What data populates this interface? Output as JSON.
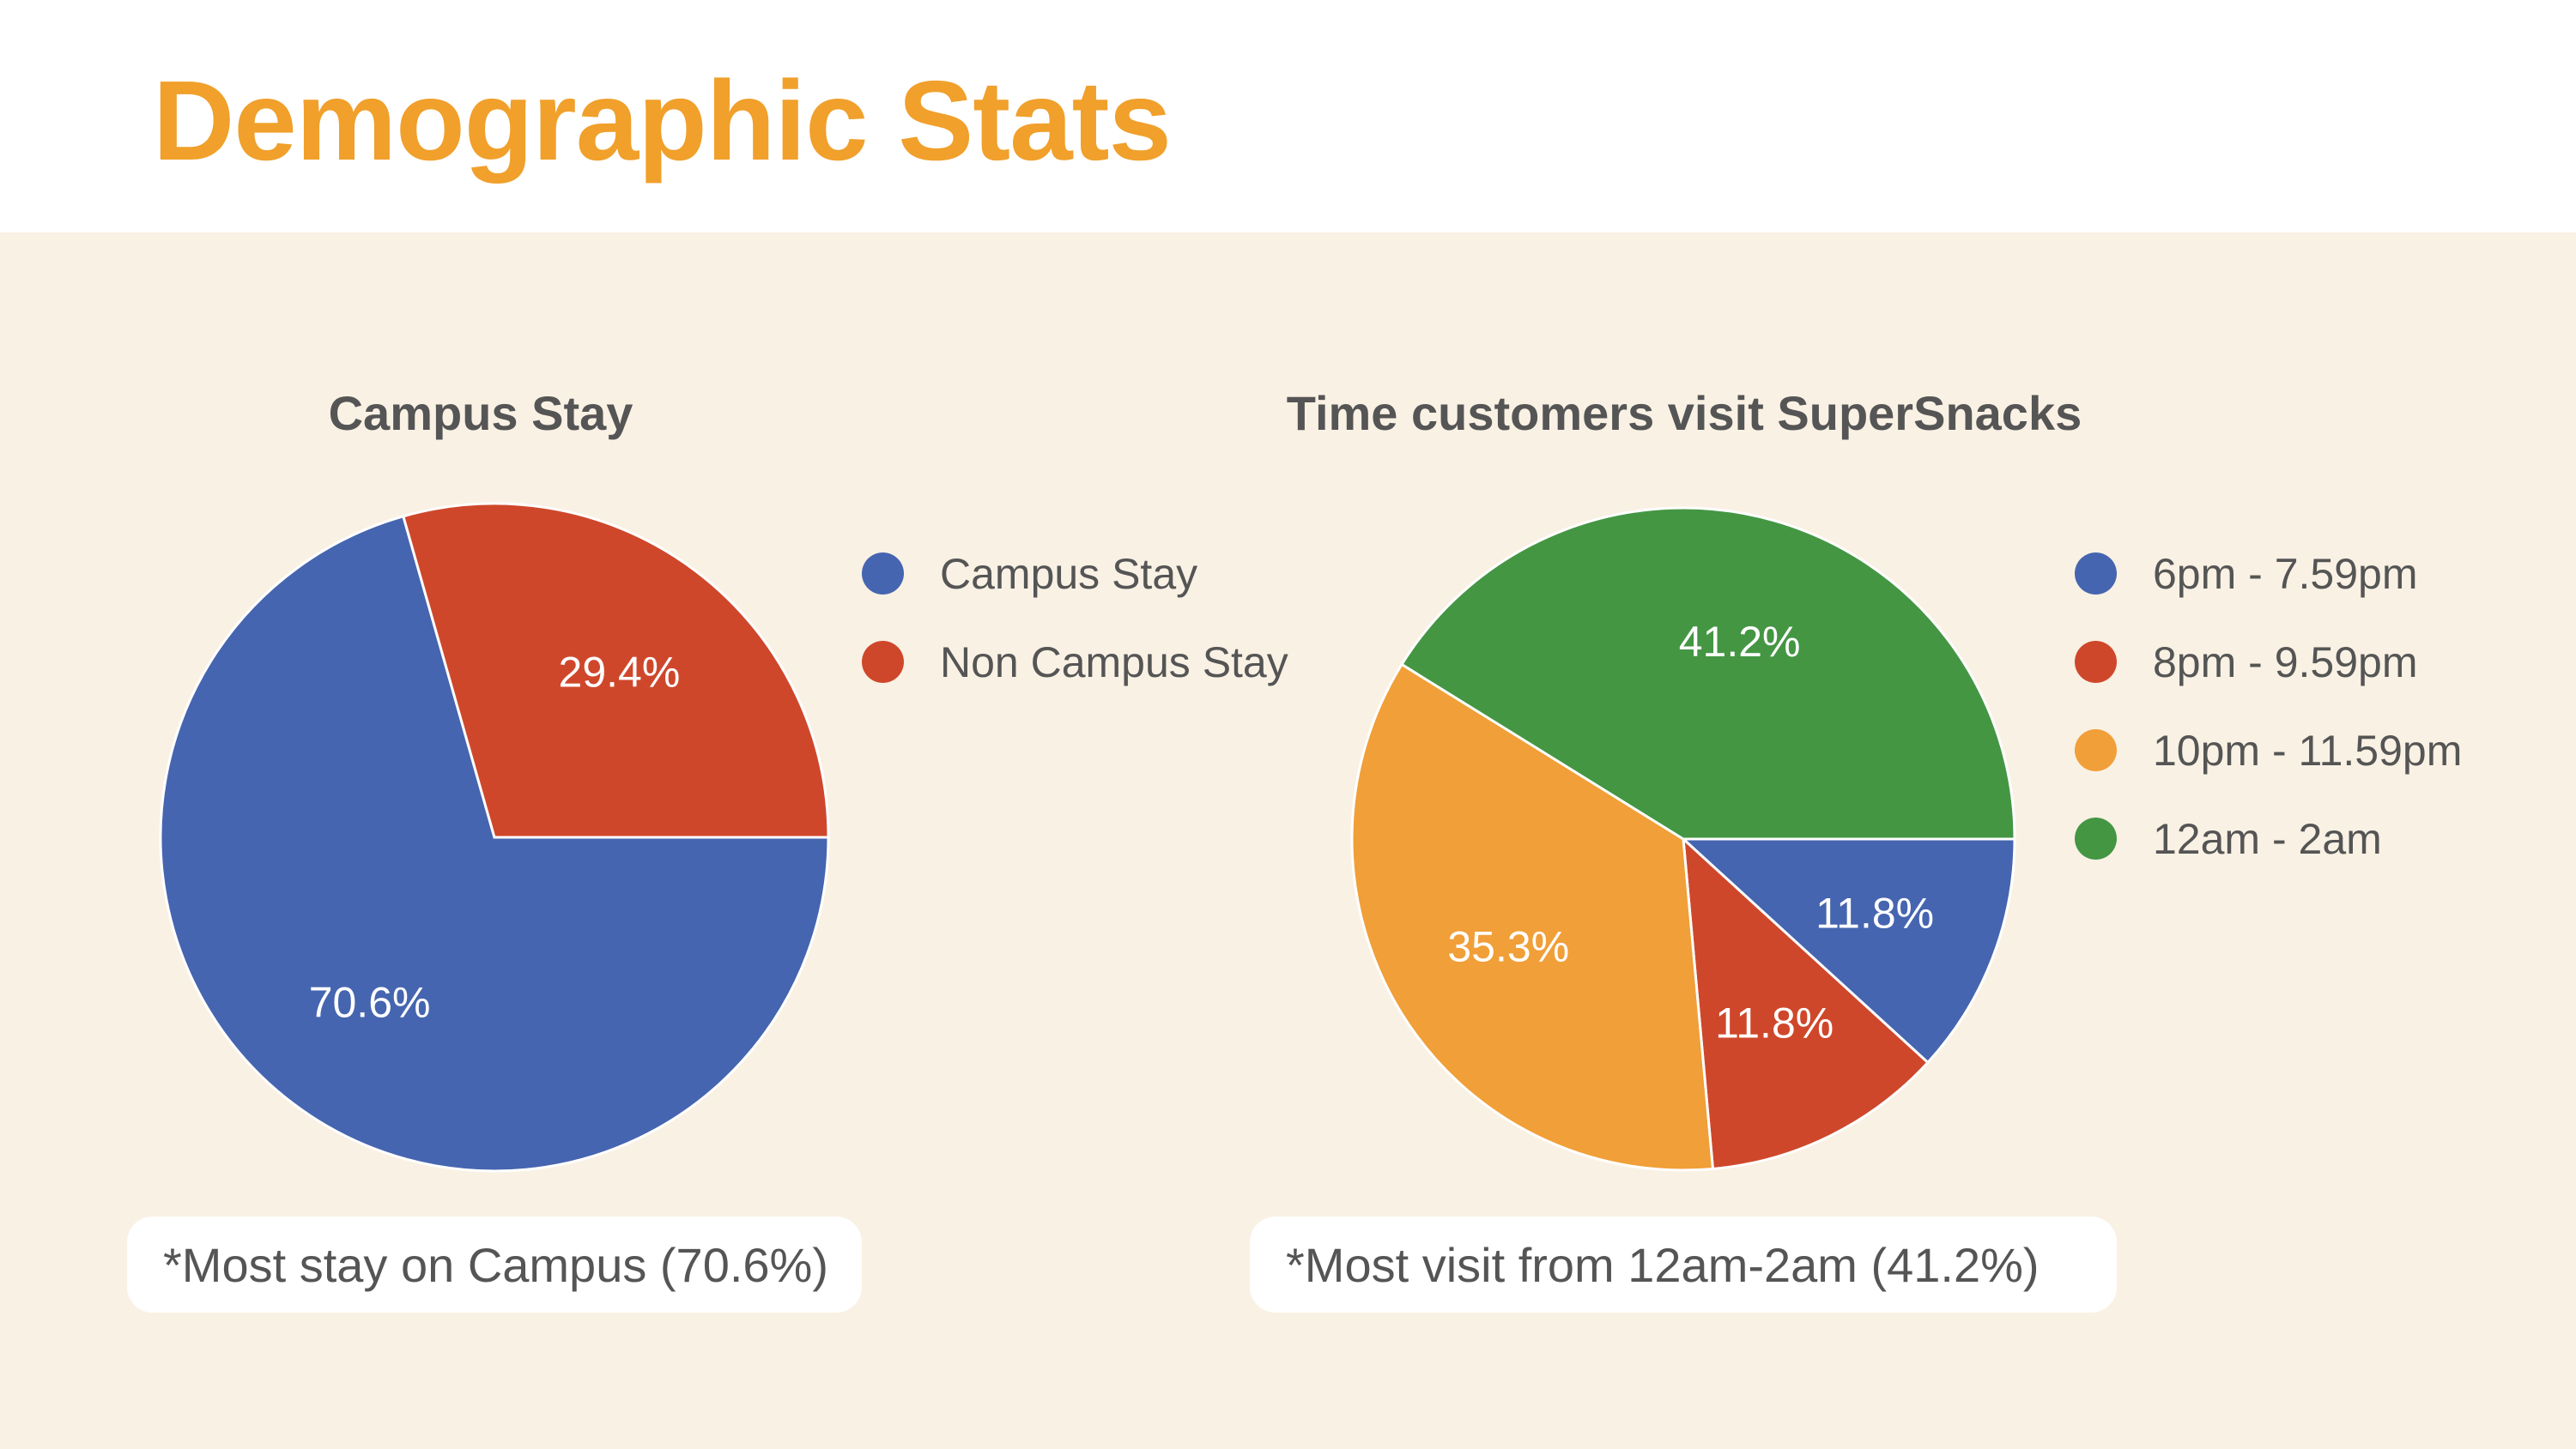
{
  "title": "Demographic Stats",
  "colors": {
    "title": "#f0a02b",
    "panel": "#f9f1e4",
    "blue": "#4665b0",
    "red": "#cf472b",
    "orange": "#f19f38",
    "green": "#449643"
  },
  "chart_data": [
    {
      "type": "pie",
      "title": "Campus Stay",
      "legend_position": "right",
      "slices": [
        {
          "label": "Campus Stay",
          "value": 70.6,
          "display": "70.6%",
          "color": "#4665b0"
        },
        {
          "label": "Non Campus Stay",
          "value": 29.4,
          "display": "29.4%",
          "color": "#cf472b"
        }
      ]
    },
    {
      "type": "pie",
      "title": "Time customers visit SuperSnacks",
      "legend_position": "right",
      "slices": [
        {
          "label": "6pm - 7.59pm",
          "value": 11.8,
          "display": "11.8%",
          "color": "#4665b0"
        },
        {
          "label": "8pm - 9.59pm",
          "value": 11.8,
          "display": "11.8%",
          "color": "#cf472b"
        },
        {
          "label": "10pm - 11.59pm",
          "value": 35.3,
          "display": "35.3%",
          "color": "#f19f38"
        },
        {
          "label": "12am - 2am",
          "value": 41.2,
          "display": "41.2%",
          "color": "#449643"
        }
      ]
    }
  ],
  "notes": [
    "*Most stay on Campus (70.6%)",
    "*Most visit from 12am-2am (41.2%)"
  ]
}
